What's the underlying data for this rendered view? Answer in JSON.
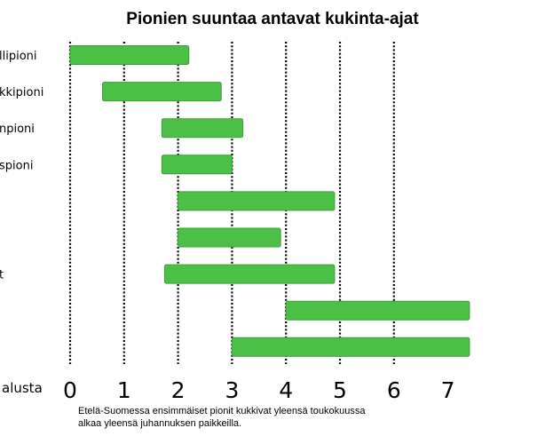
{
  "chart_data": {
    "type": "bar",
    "orientation": "horizontal-range",
    "title": "Pionien suuntaa antavat kukinta-ajat",
    "xlabel": "alusta",
    "categories": [
      "llipioni",
      "kkipioni",
      "npioni",
      "spioni",
      "",
      "",
      "t",
      "",
      ""
    ],
    "series": [
      {
        "start": [
          0,
          0.6,
          1.7,
          1.7,
          2.0,
          2.0,
          1.75,
          4.0,
          3.0
        ],
        "end": [
          2.2,
          2.8,
          3.2,
          3.0,
          4.9,
          3.9,
          4.9,
          7.4,
          7.4
        ]
      }
    ],
    "x_ticks": [
      "0",
      "1",
      "2",
      "3",
      "4",
      "5",
      "6",
      "7"
    ],
    "xlim": [
      0,
      7
    ],
    "grid": "vertical dotted at each integer",
    "bar_color": "#4cc046"
  },
  "footnote": {
    "line1": "Etelä-Suomessa ensimmäiset pionit kukkivat yleensä toukokuussa",
    "line2": "alkaa yleensä juhannuksen paikkeilla."
  }
}
